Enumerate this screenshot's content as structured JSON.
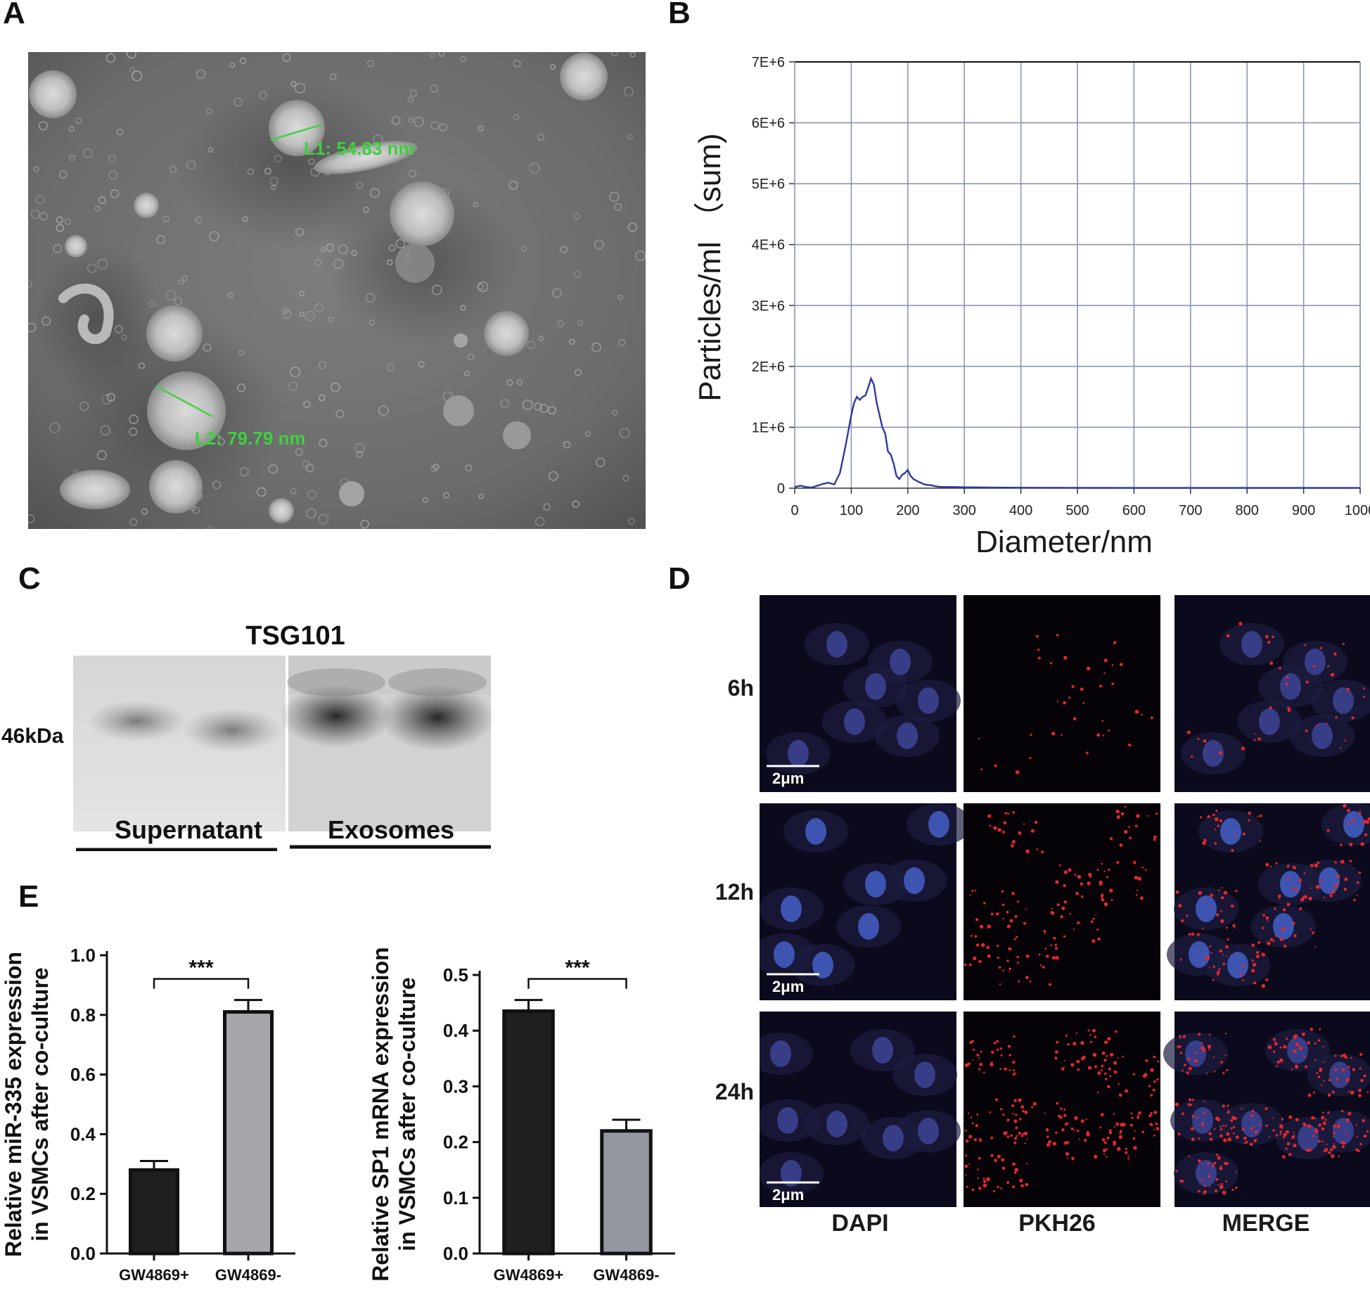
{
  "panels": {
    "A": {
      "letter": "A",
      "measurements": [
        "L1:  54.83 nm",
        "L2:  79.79 nm"
      ]
    },
    "B": {
      "letter": "B"
    },
    "C": {
      "letter": "C",
      "title": "TSG101",
      "marker": "46kDa",
      "groups": [
        "Supernatant",
        "Exosomes"
      ]
    },
    "D": {
      "letter": "D",
      "rows": [
        "6h",
        "12h",
        "24h"
      ],
      "columns": [
        "DAPI",
        "PKH26",
        "MERGE"
      ],
      "scale_bar": "2μm"
    },
    "E": {
      "letter": "E"
    }
  },
  "chart_data": [
    {
      "type": "line",
      "panel": "B",
      "xlabel": "Diameter/nm",
      "ylabel": "Particles/ml （sum)",
      "xlim": [
        0,
        1000
      ],
      "ylim": [
        0,
        7000000
      ],
      "xticks": [
        "0",
        "100",
        "200",
        "300",
        "400",
        "500",
        "600",
        "700",
        "800",
        "900",
        "1000"
      ],
      "yticks": [
        "0",
        "1E+6",
        "2E+6",
        "3E+6",
        "4E+6",
        "5E+6",
        "6E+6",
        "7E+6"
      ],
      "grid": true,
      "x": [
        0,
        10,
        20,
        30,
        40,
        50,
        60,
        70,
        80,
        90,
        100,
        105,
        110,
        115,
        120,
        125,
        130,
        135,
        140,
        145,
        150,
        155,
        160,
        165,
        170,
        175,
        180,
        185,
        190,
        195,
        200,
        205,
        210,
        220,
        230,
        240,
        250,
        260,
        280,
        300,
        350,
        400,
        500,
        600,
        700,
        800,
        900,
        1000
      ],
      "y": [
        20000,
        40000,
        20000,
        10000,
        40000,
        70000,
        90000,
        60000,
        250000,
        700000,
        1200000,
        1400000,
        1500000,
        1450000,
        1500000,
        1520000,
        1650000,
        1800000,
        1700000,
        1400000,
        1200000,
        1000000,
        900000,
        600000,
        550000,
        400000,
        200000,
        150000,
        220000,
        250000,
        300000,
        200000,
        150000,
        100000,
        60000,
        50000,
        30000,
        20000,
        20000,
        15000,
        10000,
        8000,
        6000,
        5000,
        5000,
        5000,
        5000,
        5000
      ]
    },
    {
      "type": "bar",
      "panel": "E",
      "ylabel": "Relative miR-335 expression in VSMCs after co-culture",
      "categories": [
        "GW4869+",
        "GW4869-"
      ],
      "values": [
        0.28,
        0.81
      ],
      "errors": [
        0.03,
        0.04
      ],
      "ylim": [
        0,
        1.0
      ],
      "yticks": [
        "0.0",
        "0.2",
        "0.4",
        "0.6",
        "0.8",
        "1.0"
      ],
      "significance": "***",
      "colors": [
        "#1f1f1f",
        "#a6a6ab"
      ]
    },
    {
      "type": "bar",
      "panel": "E",
      "ylabel": "Relative SP1 mRNA expression in VSMCs after co-culture",
      "categories": [
        "GW4869+",
        "GW4869-"
      ],
      "values": [
        0.435,
        0.22
      ],
      "errors": [
        0.02,
        0.02
      ],
      "ylim": [
        0,
        0.5
      ],
      "yticks": [
        "0.0",
        "0.1",
        "0.2",
        "0.3",
        "0.4",
        "0.5"
      ],
      "significance": "***",
      "colors": [
        "#1f1f1f",
        "#94979f"
      ]
    }
  ]
}
